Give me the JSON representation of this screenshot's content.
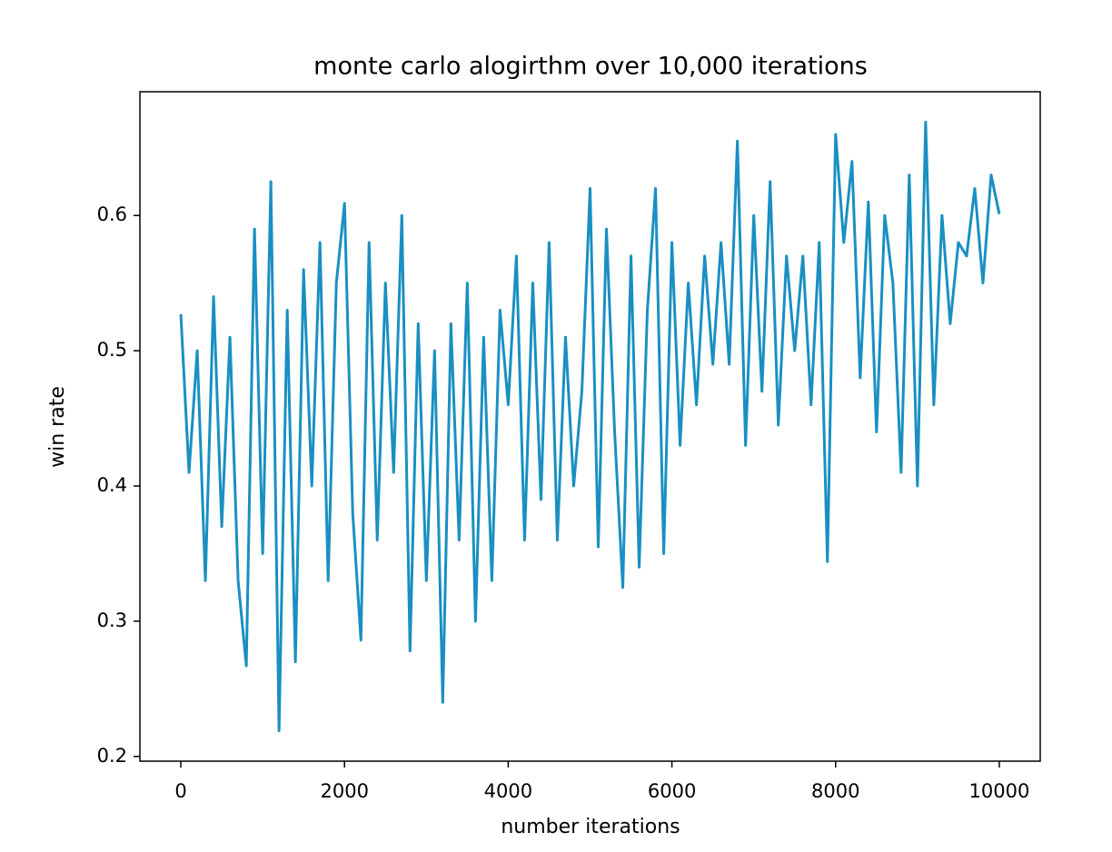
{
  "chart_data": {
    "type": "line",
    "title": "monte carlo alogirthm over 10,000 iterations",
    "x_label": "number iterations",
    "y_label": "win rate",
    "x": [
      0,
      100,
      200,
      300,
      400,
      500,
      600,
      700,
      800,
      900,
      1000,
      1100,
      1200,
      1300,
      1400,
      1500,
      1600,
      1700,
      1800,
      1900,
      2000,
      2100,
      2200,
      2300,
      2400,
      2500,
      2600,
      2700,
      2800,
      2900,
      3000,
      3100,
      3200,
      3300,
      3400,
      3500,
      3600,
      3700,
      3800,
      3900,
      4000,
      4100,
      4200,
      4300,
      4400,
      4500,
      4600,
      4700,
      4800,
      4900,
      5000,
      5100,
      5200,
      5300,
      5400,
      5500,
      5600,
      5700,
      5800,
      5900,
      6000,
      6100,
      6200,
      6300,
      6400,
      6500,
      6600,
      6700,
      6800,
      6900,
      7000,
      7100,
      7200,
      7300,
      7400,
      7500,
      7600,
      7700,
      7800,
      7900,
      8000,
      8100,
      8200,
      8300,
      8400,
      8500,
      8600,
      8700,
      8800,
      8900,
      9000,
      9100,
      9200,
      9300,
      9400,
      9500,
      9600,
      9700,
      9800,
      9900,
      10000
    ],
    "series": [
      {
        "name": "win rate",
        "color": "#1a8fc2",
        "values": [
          0.527,
          0.41,
          0.5,
          0.33,
          0.54,
          0.37,
          0.51,
          0.33,
          0.267,
          0.59,
          0.35,
          0.625,
          0.219,
          0.53,
          0.27,
          0.56,
          0.4,
          0.58,
          0.33,
          0.55,
          0.609,
          0.38,
          0.286,
          0.58,
          0.36,
          0.55,
          0.41,
          0.6,
          0.278,
          0.52,
          0.33,
          0.5,
          0.24,
          0.52,
          0.36,
          0.55,
          0.3,
          0.51,
          0.33,
          0.53,
          0.46,
          0.57,
          0.36,
          0.55,
          0.39,
          0.58,
          0.36,
          0.51,
          0.4,
          0.47,
          0.62,
          0.355,
          0.59,
          0.44,
          0.325,
          0.57,
          0.34,
          0.53,
          0.62,
          0.35,
          0.58,
          0.43,
          0.55,
          0.46,
          0.57,
          0.49,
          0.58,
          0.49,
          0.655,
          0.43,
          0.6,
          0.47,
          0.625,
          0.445,
          0.57,
          0.5,
          0.57,
          0.46,
          0.58,
          0.344,
          0.66,
          0.58,
          0.64,
          0.48,
          0.61,
          0.44,
          0.6,
          0.55,
          0.41,
          0.63,
          0.4,
          0.669,
          0.46,
          0.6,
          0.52,
          0.58,
          0.57,
          0.62,
          0.55,
          0.63,
          0.601
        ]
      }
    ],
    "xlim": [
      -500,
      10500
    ],
    "ylim": [
      0.1965,
      0.6915
    ],
    "xticks": [
      0,
      2000,
      4000,
      6000,
      8000,
      10000
    ],
    "yticks": [
      0.2,
      0.3,
      0.4,
      0.5,
      0.6
    ]
  }
}
